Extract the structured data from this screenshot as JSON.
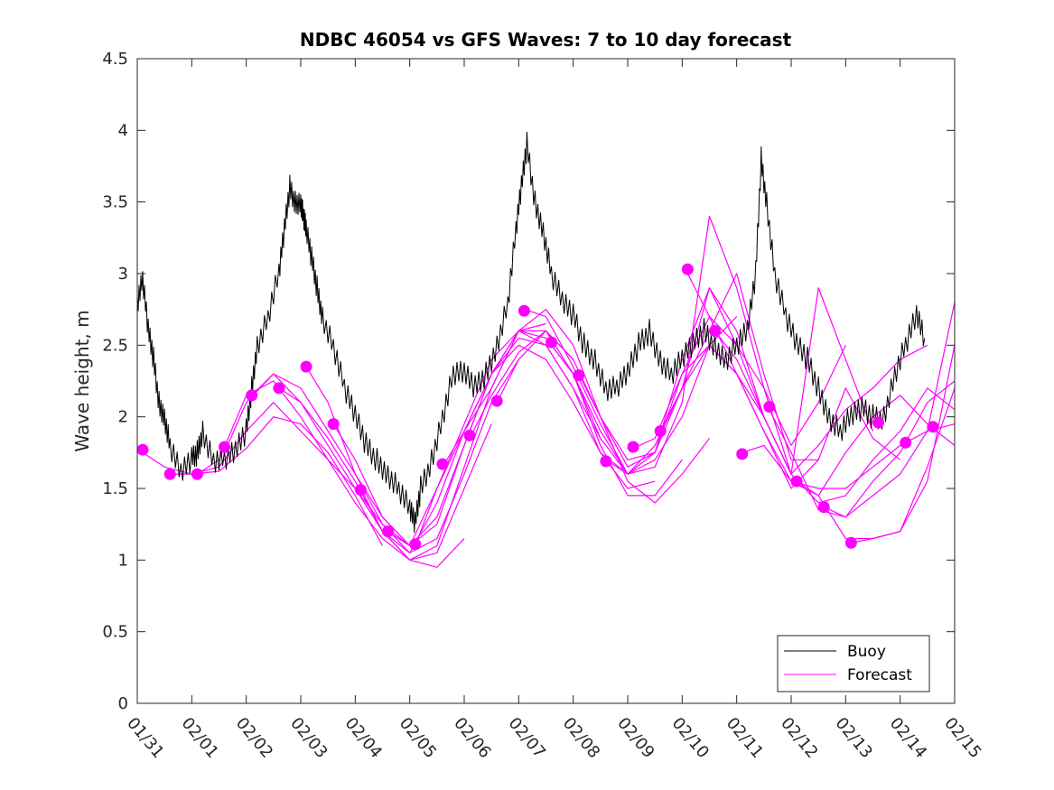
{
  "colors": {
    "buoy": "#000000",
    "forecast": "#ff00ff",
    "axes": "#262626",
    "background": "#ffffff"
  },
  "chart_data": {
    "type": "line",
    "title": "NDBC 46054 vs GFS Waves: 7 to 10 day forecast",
    "xlabel": "",
    "ylabel": "Wave height, m",
    "xlim": [
      0,
      15
    ],
    "ylim": [
      0,
      4.5
    ],
    "x_ticks": [
      0,
      1,
      2,
      3,
      4,
      5,
      6,
      7,
      8,
      9,
      10,
      11,
      12,
      13,
      14,
      15
    ],
    "x_tick_labels": [
      "01/31",
      "02/01",
      "02/02",
      "02/03",
      "02/04",
      "02/05",
      "02/06",
      "02/07",
      "02/08",
      "02/09",
      "02/10",
      "02/11",
      "02/12",
      "02/13",
      "02/14",
      "02/15"
    ],
    "y_ticks": [
      0,
      0.5,
      1,
      1.5,
      2,
      2.5,
      3,
      3.5,
      4,
      4.5
    ],
    "y_tick_labels": [
      "0",
      "0.5",
      "1",
      "1.5",
      "2",
      "2.5",
      "3",
      "3.5",
      "4",
      "4.5"
    ],
    "legend": {
      "position": "bottom-right",
      "entries": [
        "Buoy",
        "Forecast"
      ]
    },
    "buoy": {
      "name": "Buoy",
      "x": [
        0,
        0.1,
        0.2,
        0.3,
        0.4,
        0.5,
        0.6,
        0.8,
        1.0,
        1.1,
        1.2,
        1.4,
        1.6,
        1.8,
        2.0,
        2.1,
        2.2,
        2.4,
        2.6,
        2.7,
        2.8,
        2.9,
        3.0,
        3.05,
        3.1,
        3.2,
        3.3,
        3.4,
        3.6,
        3.8,
        4.0,
        4.2,
        4.4,
        4.6,
        4.8,
        5.0,
        5.1,
        5.2,
        5.4,
        5.6,
        5.8,
        6.0,
        6.2,
        6.4,
        6.6,
        6.8,
        6.95,
        7.05,
        7.15,
        7.3,
        7.45,
        7.6,
        7.8,
        8.0,
        8.2,
        8.4,
        8.6,
        8.8,
        9.0,
        9.2,
        9.4,
        9.6,
        9.8,
        10.0,
        10.2,
        10.4,
        10.6,
        10.8,
        11.0,
        11.2,
        11.35,
        11.45,
        11.55,
        11.7,
        11.9,
        12.1,
        12.3,
        12.5,
        12.7,
        12.9,
        13.1,
        13.3,
        13.5,
        13.7,
        13.9,
        14.1,
        14.3,
        14.45
      ],
      "values": [
        2.8,
        2.95,
        2.6,
        2.4,
        2.1,
        2.0,
        1.8,
        1.6,
        1.7,
        1.75,
        1.9,
        1.7,
        1.7,
        1.75,
        1.9,
        2.2,
        2.5,
        2.7,
        3.0,
        3.3,
        3.6,
        3.5,
        3.5,
        3.4,
        3.3,
        3.1,
        2.9,
        2.7,
        2.5,
        2.2,
        2.0,
        1.8,
        1.7,
        1.6,
        1.5,
        1.35,
        1.25,
        1.5,
        1.7,
        2.0,
        2.3,
        2.3,
        2.2,
        2.3,
        2.5,
        2.8,
        3.3,
        3.6,
        3.9,
        3.5,
        3.3,
        3.0,
        2.8,
        2.7,
        2.5,
        2.4,
        2.2,
        2.2,
        2.3,
        2.5,
        2.6,
        2.4,
        2.3,
        2.4,
        2.5,
        2.6,
        2.5,
        2.4,
        2.5,
        2.6,
        3.0,
        3.8,
        3.5,
        3.0,
        2.7,
        2.5,
        2.4,
        2.2,
        2.0,
        1.9,
        2.0,
        2.05,
        2.0,
        2.0,
        2.3,
        2.5,
        2.7,
        2.55
      ]
    },
    "forecast_series": [
      {
        "name": "Forecast",
        "x": [
          0.1,
          0.5,
          1.0,
          1.5,
          2.0,
          2.5,
          3.0,
          3.5,
          4.0,
          4.5
        ],
        "values": [
          1.75,
          1.65,
          1.6,
          1.62,
          1.78,
          2.0,
          1.95,
          1.75,
          1.45,
          1.1
        ]
      },
      {
        "name": "Forecast",
        "x": [
          0.6,
          1.0,
          1.5,
          2.0,
          2.5,
          3.0,
          3.5,
          4.0,
          4.5,
          5.0
        ],
        "values": [
          1.6,
          1.6,
          1.65,
          1.9,
          2.1,
          1.9,
          1.7,
          1.5,
          1.25,
          1.1
        ]
      },
      {
        "name": "Forecast",
        "x": [
          1.1,
          1.5,
          2.0,
          2.5,
          3.0,
          3.5,
          4.0,
          4.5,
          5.0,
          5.5,
          6.0
        ],
        "values": [
          1.6,
          1.7,
          2.15,
          2.25,
          2.0,
          1.7,
          1.4,
          1.15,
          1.0,
          0.95,
          1.15
        ]
      },
      {
        "name": "Forecast",
        "x": [
          1.6,
          2.0,
          2.5,
          3.0,
          3.5,
          4.0,
          4.5,
          5.0,
          5.5,
          6.0,
          6.5
        ],
        "values": [
          1.75,
          2.1,
          2.3,
          2.1,
          1.85,
          1.55,
          1.2,
          1.0,
          1.05,
          1.5,
          1.95
        ]
      },
      {
        "name": "Forecast",
        "x": [
          2.1,
          2.5,
          3.0,
          3.5,
          4.0,
          4.5,
          5.0,
          5.5,
          6.0,
          6.5,
          7.0
        ],
        "values": [
          2.15,
          2.3,
          2.2,
          1.9,
          1.6,
          1.25,
          1.05,
          1.15,
          1.6,
          2.1,
          2.4
        ]
      },
      {
        "name": "Forecast",
        "x": [
          2.6,
          3.0,
          3.5,
          4.0,
          4.5,
          5.0,
          5.5,
          6.0,
          6.5,
          7.0,
          7.5
        ],
        "values": [
          2.2,
          2.1,
          1.8,
          1.5,
          1.2,
          1.0,
          1.1,
          1.65,
          2.2,
          2.6,
          2.65
        ]
      },
      {
        "name": "Forecast",
        "x": [
          3.1,
          3.5,
          4.0,
          4.5,
          5.0,
          5.5,
          6.0,
          6.5,
          7.0,
          7.5,
          8.0
        ],
        "values": [
          2.35,
          2.1,
          1.6,
          1.3,
          1.1,
          1.3,
          1.8,
          2.3,
          2.6,
          2.6,
          2.4
        ]
      },
      {
        "name": "Forecast",
        "x": [
          3.6,
          4.0,
          4.5,
          5.0,
          5.5,
          6.0,
          6.5,
          7.0,
          7.5,
          8.0,
          8.5
        ],
        "values": [
          1.95,
          1.7,
          1.3,
          1.1,
          1.25,
          1.8,
          2.3,
          2.55,
          2.5,
          2.2,
          1.85
        ]
      },
      {
        "name": "Forecast",
        "x": [
          4.1,
          4.5,
          5.0,
          5.5,
          6.0,
          6.5,
          7.0,
          7.5,
          8.0,
          8.5,
          9.0
        ],
        "values": [
          1.5,
          1.2,
          1.05,
          1.4,
          1.9,
          2.3,
          2.5,
          2.4,
          2.1,
          1.75,
          1.6
        ]
      },
      {
        "name": "Forecast",
        "x": [
          4.6,
          5.0,
          5.5,
          6.0,
          6.5,
          7.0,
          7.5,
          8.0,
          8.5,
          9.0,
          9.5
        ],
        "values": [
          1.2,
          1.1,
          1.5,
          1.95,
          2.4,
          2.6,
          2.5,
          2.2,
          1.75,
          1.5,
          1.55
        ]
      },
      {
        "name": "Forecast",
        "x": [
          5.1,
          5.5,
          6.0,
          6.5,
          7.0,
          7.5,
          8.0,
          8.5,
          9.0,
          9.5,
          10.0
        ],
        "values": [
          1.1,
          1.5,
          1.9,
          2.3,
          2.6,
          2.55,
          2.3,
          1.8,
          1.45,
          1.45,
          1.7
        ]
      },
      {
        "name": "Forecast",
        "x": [
          5.6,
          6.0,
          6.5,
          7.0,
          7.5,
          8.0,
          8.5,
          9.0,
          9.5,
          10.0,
          10.5
        ],
        "values": [
          1.65,
          1.9,
          2.2,
          2.6,
          2.75,
          2.5,
          2.0,
          1.55,
          1.4,
          1.6,
          1.85
        ]
      },
      {
        "name": "Forecast",
        "x": [
          6.1,
          6.5,
          7.0,
          7.5,
          8.0,
          8.5,
          9.0,
          9.5,
          10.0,
          10.5,
          11.0
        ],
        "values": [
          1.85,
          2.15,
          2.45,
          2.6,
          2.3,
          1.9,
          1.6,
          1.7,
          2.0,
          2.5,
          2.7
        ]
      },
      {
        "name": "Forecast",
        "x": [
          6.6,
          7.0,
          7.5,
          8.0,
          8.5,
          9.0,
          9.5,
          10.0,
          10.5,
          11.0,
          11.5
        ],
        "values": [
          2.1,
          2.4,
          2.6,
          2.4,
          2.0,
          1.65,
          1.75,
          2.2,
          2.9,
          2.6,
          2.0
        ]
      },
      {
        "name": "Forecast",
        "x": [
          7.1,
          7.5,
          8.0,
          8.5,
          9.0,
          9.5,
          10.0,
          10.5,
          11.0,
          11.5,
          12.0
        ],
        "values": [
          2.75,
          2.7,
          2.35,
          1.95,
          1.6,
          1.65,
          2.1,
          3.4,
          2.9,
          2.2,
          1.6
        ]
      },
      {
        "name": "Forecast",
        "x": [
          7.6,
          8.0,
          8.5,
          9.0,
          9.5,
          10.0,
          10.5,
          11.0,
          11.5,
          12.0,
          12.5
        ],
        "values": [
          2.5,
          2.3,
          1.85,
          1.6,
          1.8,
          2.2,
          2.6,
          3.0,
          2.3,
          1.7,
          1.7
        ]
      },
      {
        "name": "Forecast",
        "x": [
          8.1,
          8.5,
          9.0,
          9.5,
          10.0,
          10.5,
          11.0,
          11.5,
          12.0,
          12.5,
          13.0
        ],
        "values": [
          2.3,
          2.0,
          1.7,
          1.75,
          2.3,
          2.7,
          2.5,
          2.2,
          1.8,
          2.1,
          2.5
        ]
      },
      {
        "name": "Forecast",
        "x": [
          8.6,
          9.0,
          9.5,
          10.0,
          10.5,
          11.0,
          11.5,
          12.0,
          12.5,
          13.0,
          13.5
        ],
        "values": [
          1.7,
          1.6,
          1.75,
          2.4,
          2.9,
          2.5,
          2.0,
          1.6,
          2.9,
          2.4,
          1.9
        ]
      },
      {
        "name": "Forecast",
        "x": [
          9.1,
          9.5,
          10.0,
          10.5,
          11.0,
          11.5,
          12.0,
          12.5,
          13.0,
          13.5,
          14.0
        ],
        "values": [
          1.78,
          1.85,
          2.3,
          2.5,
          2.3,
          1.9,
          1.5,
          1.7,
          2.2,
          1.85,
          1.7
        ]
      },
      {
        "name": "Forecast",
        "x": [
          9.6,
          10.0,
          10.5,
          11.0,
          11.5,
          12.0,
          12.5,
          13.0,
          13.5,
          14.0,
          14.5
        ],
        "values": [
          1.9,
          2.2,
          2.5,
          2.3,
          2.0,
          1.6,
          1.8,
          2.05,
          2.2,
          2.4,
          2.5
        ]
      },
      {
        "name": "Forecast",
        "x": [
          10.1,
          10.5,
          11.0,
          11.5,
          12.0,
          12.5,
          13.0,
          13.5,
          14.0,
          14.5,
          15.0
        ],
        "values": [
          3.0,
          2.7,
          2.3,
          1.9,
          1.55,
          1.45,
          1.75,
          2.0,
          2.15,
          1.95,
          1.8
        ]
      },
      {
        "name": "Forecast",
        "x": [
          10.6,
          11.0,
          11.5,
          12.0,
          12.5,
          13.0,
          13.5,
          14.0,
          14.5,
          15.0
        ],
        "values": [
          2.6,
          2.4,
          2.0,
          1.6,
          1.4,
          1.45,
          1.7,
          1.9,
          2.2,
          2.05
        ]
      },
      {
        "name": "Forecast",
        "x": [
          11.1,
          11.5,
          12.0,
          12.5,
          13.0,
          13.5,
          14.0,
          14.5,
          15.0
        ],
        "values": [
          1.75,
          1.8,
          1.55,
          1.5,
          1.5,
          1.65,
          1.8,
          1.9,
          1.95
        ]
      },
      {
        "name": "Forecast",
        "x": [
          11.6,
          12.0,
          12.5,
          13.0,
          13.5,
          14.0,
          14.5,
          15.0
        ],
        "values": [
          2.05,
          1.75,
          1.35,
          1.3,
          1.55,
          1.75,
          2.1,
          2.25
        ]
      },
      {
        "name": "Forecast",
        "x": [
          12.1,
          12.5,
          13.0,
          13.5,
          14.0,
          14.5,
          15.0
        ],
        "values": [
          1.55,
          1.45,
          1.15,
          1.15,
          1.2,
          1.65,
          2.2
        ]
      },
      {
        "name": "Forecast",
        "x": [
          12.6,
          13.0,
          13.5,
          14.0,
          14.5,
          15.0
        ],
        "values": [
          1.37,
          1.3,
          1.45,
          1.6,
          1.9,
          2.8
        ]
      },
      {
        "name": "Forecast",
        "x": [
          13.1,
          13.5,
          14.0,
          14.5,
          15.0
        ],
        "values": [
          1.12,
          1.15,
          1.2,
          1.55,
          2.5
        ]
      }
    ],
    "forecast_markers": {
      "x": [
        0.1,
        0.6,
        1.1,
        1.6,
        2.1,
        2.6,
        3.1,
        3.6,
        4.1,
        4.6,
        5.1,
        5.6,
        6.1,
        6.6,
        7.1,
        7.6,
        8.1,
        8.6,
        9.1,
        9.6,
        10.1,
        10.6,
        11.1,
        11.6,
        12.1,
        12.6,
        13.1,
        13.6,
        14.1,
        14.6
      ],
      "values": [
        1.77,
        1.6,
        1.6,
        1.79,
        2.15,
        2.2,
        2.35,
        1.95,
        1.49,
        1.2,
        1.11,
        1.67,
        1.87,
        2.11,
        2.74,
        2.52,
        2.29,
        1.69,
        1.79,
        1.9,
        3.03,
        2.6,
        1.74,
        2.07,
        1.55,
        1.37,
        1.12,
        1.96,
        1.82,
        1.93
      ]
    }
  }
}
